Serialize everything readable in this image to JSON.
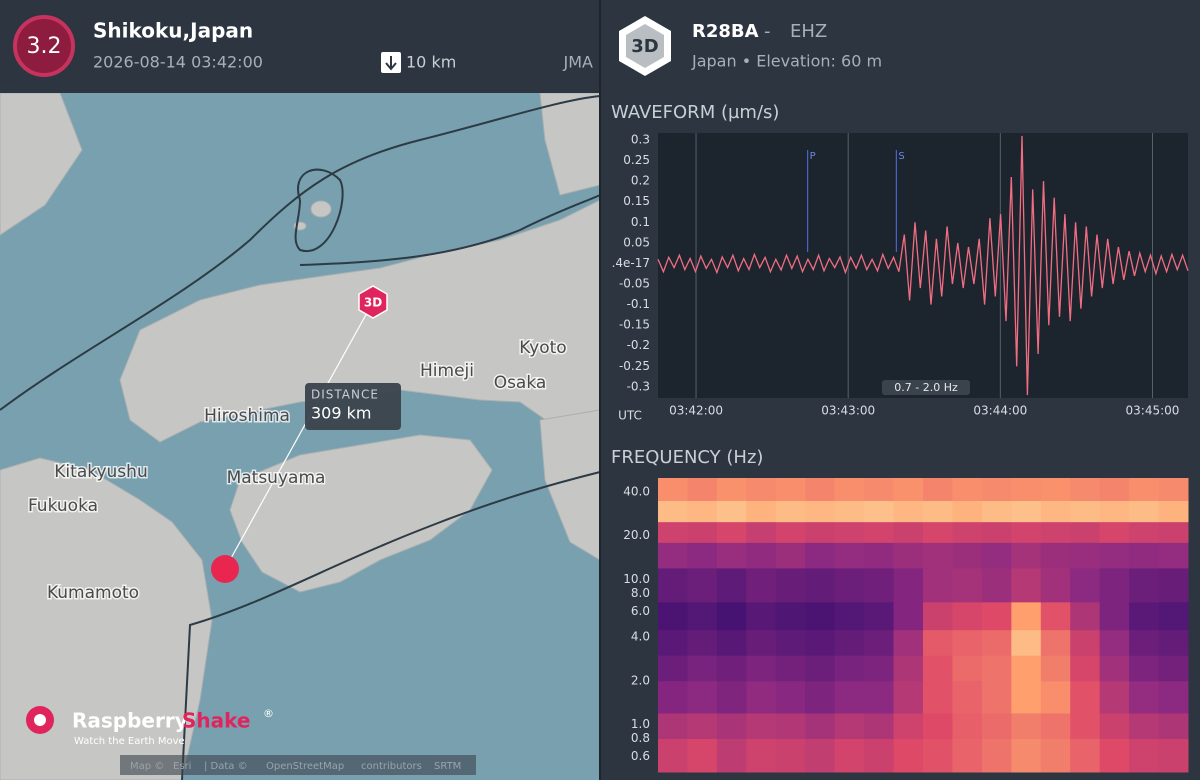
{
  "event": {
    "magnitude": "3.2",
    "location": "Shikoku,Japan",
    "time": "2026-08-14 03:42:00",
    "depth": "10 km",
    "agency": "JMA"
  },
  "station": {
    "badge": "3D",
    "code": "R28BA",
    "separator": "-",
    "channel": "EHZ",
    "subtitle": "Japan • Elevation: 60 m"
  },
  "map": {
    "places": [
      "Kyoto",
      "Osaka",
      "Himeji",
      "Hiroshima",
      "Matsuyama",
      "Kitakyushu",
      "Fukuoka",
      "Kumamoto"
    ],
    "station_marker": "3D",
    "distance_label": "DISTANCE",
    "distance": "309 km",
    "brand": "Raspberry",
    "brand_accent": "Shake",
    "registered": "®",
    "tagline": "Watch the Earth Move",
    "attribution": [
      "Map ©",
      "Esri",
      "| Data ©",
      "OpenStreetMap",
      "contributors",
      "SRTM"
    ]
  },
  "waveform": {
    "type": "line",
    "title": "WAVEFORM (µm/s)",
    "time_zone": "UTC",
    "filter": "0.7 - 2.0 Hz",
    "color": "#f26d82",
    "xlim": [
      "03:41:45",
      "03:45:14"
    ],
    "xticks": [
      "03:42:00",
      "03:43:00",
      "03:44:00",
      "03:45:00"
    ],
    "ylim": [
      -0.327,
      0.317
    ],
    "yticks": [
      0.3,
      0.25,
      0.2,
      0.15,
      0.1,
      0.05,
      {
        "value": -1.4e-17,
        "label": ".4e-17"
      },
      -0.05,
      -0.1,
      -0.15,
      -0.2,
      -0.25,
      -0.3
    ],
    "phases": [
      {
        "label": "P",
        "time": "03:42:44"
      },
      {
        "label": "S",
        "time": "03:43:19"
      }
    ],
    "values": [
      0.01,
      -0.02,
      0.015,
      -0.01,
      0.02,
      -0.015,
      0.012,
      -0.02,
      0.018,
      -0.012,
      0.01,
      -0.022,
      0.016,
      -0.01,
      0.02,
      -0.018,
      0.012,
      -0.015,
      0.022,
      -0.01,
      0.015,
      -0.02,
      0.01,
      -0.016,
      0.02,
      -0.012,
      0.018,
      -0.02,
      0.01,
      -0.015,
      0.02,
      -0.018,
      0.012,
      -0.01,
      0.016,
      -0.022,
      0.015,
      -0.012,
      0.02,
      -0.015,
      0.01,
      -0.018,
      0.022,
      -0.012,
      0.015,
      -0.02,
      0.07,
      -0.09,
      0.1,
      -0.06,
      0.08,
      -0.1,
      0.06,
      -0.08,
      0.09,
      -0.05,
      0.05,
      -0.06,
      0.04,
      -0.05,
      0.06,
      -0.1,
      0.11,
      -0.08,
      0.12,
      -0.14,
      0.21,
      -0.25,
      0.31,
      -0.32,
      0.18,
      -0.22,
      0.2,
      -0.15,
      0.16,
      -0.13,
      0.12,
      -0.14,
      0.1,
      -0.11,
      0.09,
      -0.08,
      0.07,
      -0.06,
      0.06,
      -0.05,
      0.04,
      -0.04,
      0.03,
      -0.03,
      0.025,
      -0.02,
      0.02,
      -0.025,
      0.018,
      -0.02,
      0.022,
      -0.015,
      0.02,
      -0.018
    ]
  },
  "spectrogram": {
    "type": "heatmap",
    "title": "FREQUENCY (Hz)",
    "log_scale": true,
    "ylim": [
      0.47,
      50
    ],
    "yticks": [
      {
        "value": 40,
        "label": "40.0"
      },
      {
        "value": 20,
        "label": "20.0"
      },
      {
        "value": 10,
        "label": "10.0"
      },
      {
        "value": 8,
        "label": "8.0"
      },
      {
        "value": 6,
        "label": "6.0"
      },
      {
        "value": 4,
        "label": "4.0"
      },
      {
        "value": 2,
        "label": "2.0"
      },
      {
        "value": 1,
        "label": "1.0"
      },
      0.8,
      0.6
    ],
    "colors": [
      "#000004",
      "#3b0f70",
      "#8c2981",
      "#de4968",
      "#fe9f6d",
      "#fcfdbf"
    ],
    "bands": [
      0.47,
      0.8,
      1.2,
      2,
      3,
      4.5,
      7,
      12,
      18,
      25,
      35,
      50
    ],
    "values": [
      [
        0.55,
        0.58,
        0.52,
        0.56,
        0.55,
        0.53,
        0.57,
        0.55,
        0.6,
        0.62,
        0.66,
        0.7,
        0.75,
        0.72,
        0.66,
        0.6,
        0.56,
        0.55
      ],
      [
        0.48,
        0.5,
        0.47,
        0.5,
        0.49,
        0.46,
        0.5,
        0.48,
        0.56,
        0.6,
        0.65,
        0.68,
        0.72,
        0.7,
        0.62,
        0.55,
        0.5,
        0.48
      ],
      [
        0.38,
        0.4,
        0.37,
        0.41,
        0.39,
        0.36,
        0.4,
        0.4,
        0.5,
        0.62,
        0.66,
        0.7,
        0.8,
        0.76,
        0.62,
        0.5,
        0.42,
        0.4
      ],
      [
        0.32,
        0.35,
        0.33,
        0.36,
        0.34,
        0.32,
        0.35,
        0.36,
        0.48,
        0.62,
        0.68,
        0.7,
        0.8,
        0.72,
        0.58,
        0.45,
        0.36,
        0.34
      ],
      [
        0.28,
        0.3,
        0.27,
        0.31,
        0.29,
        0.28,
        0.3,
        0.32,
        0.45,
        0.64,
        0.66,
        0.68,
        0.86,
        0.7,
        0.55,
        0.42,
        0.32,
        0.3
      ],
      [
        0.24,
        0.26,
        0.23,
        0.27,
        0.25,
        0.24,
        0.26,
        0.28,
        0.38,
        0.55,
        0.58,
        0.6,
        0.8,
        0.62,
        0.48,
        0.36,
        0.28,
        0.26
      ],
      [
        0.3,
        0.32,
        0.29,
        0.33,
        0.31,
        0.3,
        0.32,
        0.33,
        0.38,
        0.45,
        0.46,
        0.44,
        0.5,
        0.45,
        0.4,
        0.36,
        0.32,
        0.31
      ],
      [
        0.42,
        0.4,
        0.43,
        0.41,
        0.44,
        0.4,
        0.42,
        0.41,
        0.44,
        0.45,
        0.44,
        0.42,
        0.46,
        0.44,
        0.43,
        0.42,
        0.41,
        0.42
      ],
      [
        0.56,
        0.55,
        0.58,
        0.54,
        0.57,
        0.55,
        0.56,
        0.57,
        0.55,
        0.58,
        0.56,
        0.55,
        0.57,
        0.56,
        0.55,
        0.58,
        0.56,
        0.55
      ],
      [
        0.86,
        0.85,
        0.87,
        0.84,
        0.86,
        0.85,
        0.86,
        0.87,
        0.85,
        0.86,
        0.84,
        0.86,
        0.87,
        0.85,
        0.86,
        0.85,
        0.86,
        0.84
      ],
      [
        0.76,
        0.74,
        0.77,
        0.75,
        0.76,
        0.74,
        0.76,
        0.75,
        0.77,
        0.74,
        0.76,
        0.75,
        0.76,
        0.77,
        0.75,
        0.74,
        0.76,
        0.75
      ]
    ]
  }
}
